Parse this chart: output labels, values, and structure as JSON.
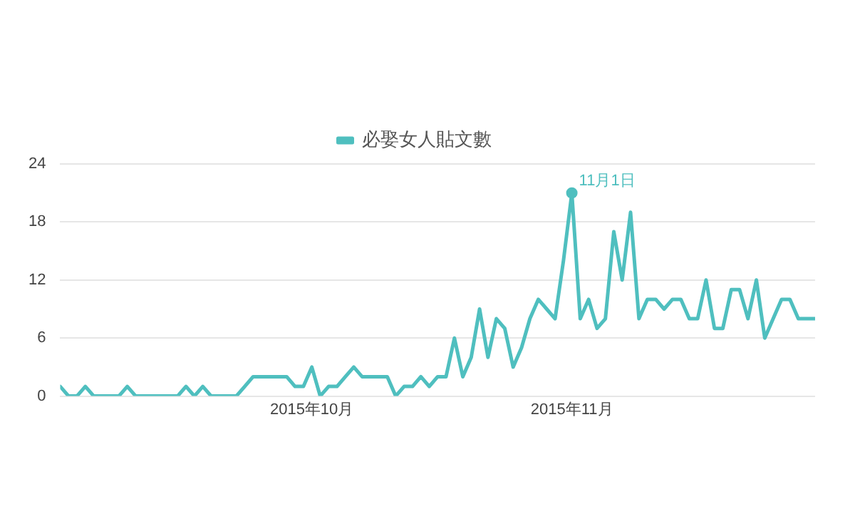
{
  "chart_data": {
    "type": "line",
    "x": [
      "2015-09-01",
      "2015-09-02",
      "2015-09-03",
      "2015-09-04",
      "2015-09-05",
      "2015-09-06",
      "2015-09-07",
      "2015-09-08",
      "2015-09-09",
      "2015-09-10",
      "2015-09-11",
      "2015-09-12",
      "2015-09-13",
      "2015-09-14",
      "2015-09-15",
      "2015-09-16",
      "2015-09-17",
      "2015-09-18",
      "2015-09-19",
      "2015-09-20",
      "2015-09-21",
      "2015-09-22",
      "2015-09-23",
      "2015-09-24",
      "2015-09-25",
      "2015-09-26",
      "2015-09-27",
      "2015-09-28",
      "2015-09-29",
      "2015-09-30",
      "2015-10-01",
      "2015-10-02",
      "2015-10-03",
      "2015-10-04",
      "2015-10-05",
      "2015-10-06",
      "2015-10-07",
      "2015-10-08",
      "2015-10-09",
      "2015-10-10",
      "2015-10-11",
      "2015-10-12",
      "2015-10-13",
      "2015-10-14",
      "2015-10-15",
      "2015-10-16",
      "2015-10-17",
      "2015-10-18",
      "2015-10-19",
      "2015-10-20",
      "2015-10-21",
      "2015-10-22",
      "2015-10-23",
      "2015-10-24",
      "2015-10-25",
      "2015-10-26",
      "2015-10-27",
      "2015-10-28",
      "2015-10-29",
      "2015-10-30",
      "2015-10-31",
      "2015-11-01",
      "2015-11-02",
      "2015-11-03",
      "2015-11-04",
      "2015-11-05",
      "2015-11-06",
      "2015-11-07",
      "2015-11-08",
      "2015-11-09",
      "2015-11-10",
      "2015-11-11",
      "2015-11-12",
      "2015-11-13",
      "2015-11-14",
      "2015-11-15",
      "2015-11-16",
      "2015-11-17",
      "2015-11-18",
      "2015-11-19",
      "2015-11-20",
      "2015-11-21",
      "2015-11-22",
      "2015-11-23",
      "2015-11-24",
      "2015-11-25",
      "2015-11-26",
      "2015-11-27",
      "2015-11-28",
      "2015-11-29",
      "2015-11-30"
    ],
    "series": [
      {
        "name": "必娶女人貼文數",
        "color": "#4fbfbf",
        "values": [
          1,
          0,
          0,
          1,
          0,
          0,
          0,
          0,
          1,
          0,
          0,
          0,
          0,
          0,
          0,
          1,
          0,
          1,
          0,
          0,
          0,
          0,
          1,
          2,
          2,
          2,
          2,
          2,
          1,
          1,
          3,
          0,
          1,
          1,
          2,
          3,
          2,
          2,
          2,
          2,
          0,
          1,
          1,
          2,
          1,
          2,
          2,
          6,
          2,
          4,
          9,
          4,
          8,
          7,
          3,
          5,
          8,
          10,
          9,
          8,
          14,
          21,
          8,
          10,
          7,
          8,
          17,
          12,
          19,
          8,
          10,
          10,
          9,
          10,
          10,
          8,
          8,
          12,
          7,
          7,
          11,
          11,
          8,
          12,
          6,
          8,
          10,
          10,
          8,
          8,
          8
        ]
      }
    ],
    "xlim": [
      "2015-09-01",
      "2015-11-30"
    ],
    "xticks": [
      {
        "value": "2015-10-01",
        "label": "2015年10月"
      },
      {
        "value": "2015-11-01",
        "label": "2015年11月"
      }
    ],
    "ylim": [
      0,
      24
    ],
    "yticks": [
      0,
      6,
      12,
      18,
      24
    ],
    "grid": "y",
    "legend": "top",
    "marker": "none",
    "line_style": "solid",
    "annotations": [
      {
        "text": "11月1日",
        "x": "2015-11-01",
        "y": 21
      }
    ]
  }
}
